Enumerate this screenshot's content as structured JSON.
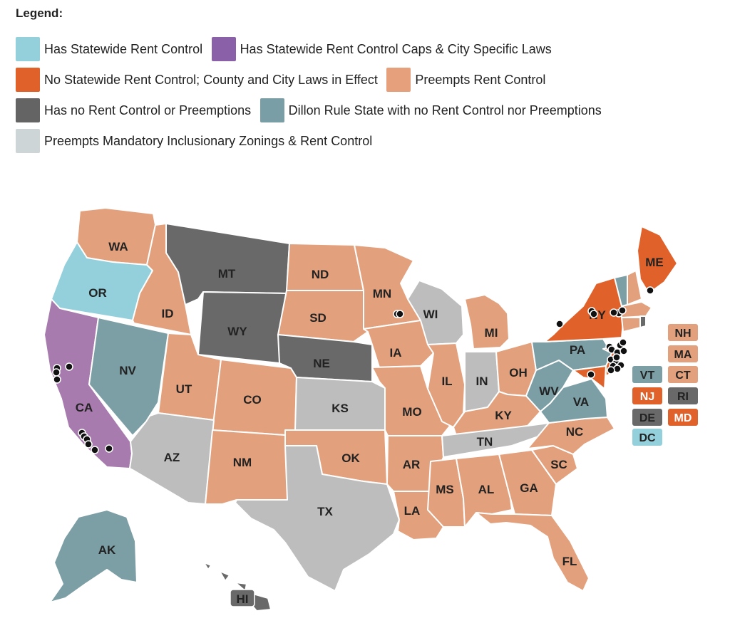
{
  "legend": {
    "title": "Legend:",
    "items": [
      {
        "label": "Has Statewide Rent Control",
        "color": "#93d0dc"
      },
      {
        "label": "Has Statewide Rent Control Caps & City Specific Laws",
        "color": "#8a60a8"
      },
      {
        "label": "No Statewide Rent Control; County and City Laws in Effect",
        "color": "#e0622a"
      },
      {
        "label": "Preempts Rent Control",
        "color": "#e6a07c"
      },
      {
        "label": "Has no Rent Control or Preemptions",
        "color": "#646464"
      },
      {
        "label": "Dillon Rule State with no Rent Control nor Preemptions",
        "color": "#7a9ea6"
      },
      {
        "label": "Preempts Mandatory Inclusionary Zonings & Rent Control",
        "color": "#cdd5d6"
      }
    ]
  },
  "categories": {
    "statewide": "#93d0dc",
    "caps": "#a77bae",
    "local": "#e0622a",
    "preempts": "#e3a07c",
    "none": "#696969",
    "dillon": "#7c9ea5",
    "iz": "#bdbdbd"
  },
  "states": [
    {
      "abbr": "WA",
      "category": "preempts"
    },
    {
      "abbr": "OR",
      "category": "statewide"
    },
    {
      "abbr": "CA",
      "category": "caps"
    },
    {
      "abbr": "ID",
      "category": "preempts"
    },
    {
      "abbr": "NV",
      "category": "dillon"
    },
    {
      "abbr": "MT",
      "category": "none"
    },
    {
      "abbr": "WY",
      "category": "none"
    },
    {
      "abbr": "UT",
      "category": "preempts"
    },
    {
      "abbr": "CO",
      "category": "preempts"
    },
    {
      "abbr": "AZ",
      "category": "iz"
    },
    {
      "abbr": "NM",
      "category": "preempts"
    },
    {
      "abbr": "ND",
      "category": "preempts"
    },
    {
      "abbr": "SD",
      "category": "preempts"
    },
    {
      "abbr": "NE",
      "category": "none"
    },
    {
      "abbr": "KS",
      "category": "iz"
    },
    {
      "abbr": "OK",
      "category": "preempts"
    },
    {
      "abbr": "TX",
      "category": "iz"
    },
    {
      "abbr": "MN",
      "category": "preempts"
    },
    {
      "abbr": "IA",
      "category": "preempts"
    },
    {
      "abbr": "MO",
      "category": "preempts"
    },
    {
      "abbr": "AR",
      "category": "preempts"
    },
    {
      "abbr": "LA",
      "category": "preempts"
    },
    {
      "abbr": "WI",
      "category": "iz"
    },
    {
      "abbr": "IL",
      "category": "preempts"
    },
    {
      "abbr": "MI",
      "category": "preempts"
    },
    {
      "abbr": "IN",
      "category": "iz"
    },
    {
      "abbr": "OH",
      "category": "preempts"
    },
    {
      "abbr": "KY",
      "category": "preempts"
    },
    {
      "abbr": "TN",
      "category": "iz"
    },
    {
      "abbr": "MS",
      "category": "preempts"
    },
    {
      "abbr": "AL",
      "category": "preempts"
    },
    {
      "abbr": "GA",
      "category": "preempts"
    },
    {
      "abbr": "FL",
      "category": "preempts"
    },
    {
      "abbr": "SC",
      "category": "preempts"
    },
    {
      "abbr": "NC",
      "category": "preempts"
    },
    {
      "abbr": "VA",
      "category": "dillon"
    },
    {
      "abbr": "WV",
      "category": "dillon"
    },
    {
      "abbr": "PA",
      "category": "dillon"
    },
    {
      "abbr": "NY",
      "category": "local"
    },
    {
      "abbr": "ME",
      "category": "local"
    },
    {
      "abbr": "AK",
      "category": "dillon"
    },
    {
      "abbr": "HI",
      "category": "none"
    }
  ],
  "small_states": [
    {
      "abbr": "NH",
      "category": "preempts"
    },
    {
      "abbr": "MA",
      "category": "preempts"
    },
    {
      "abbr": "VT",
      "category": "dillon"
    },
    {
      "abbr": "CT",
      "category": "preempts"
    },
    {
      "abbr": "NJ",
      "category": "local"
    },
    {
      "abbr": "RI",
      "category": "none"
    },
    {
      "abbr": "DE",
      "category": "none"
    },
    {
      "abbr": "MD",
      "category": "local"
    },
    {
      "abbr": "DC",
      "category": "statewide"
    }
  ]
}
